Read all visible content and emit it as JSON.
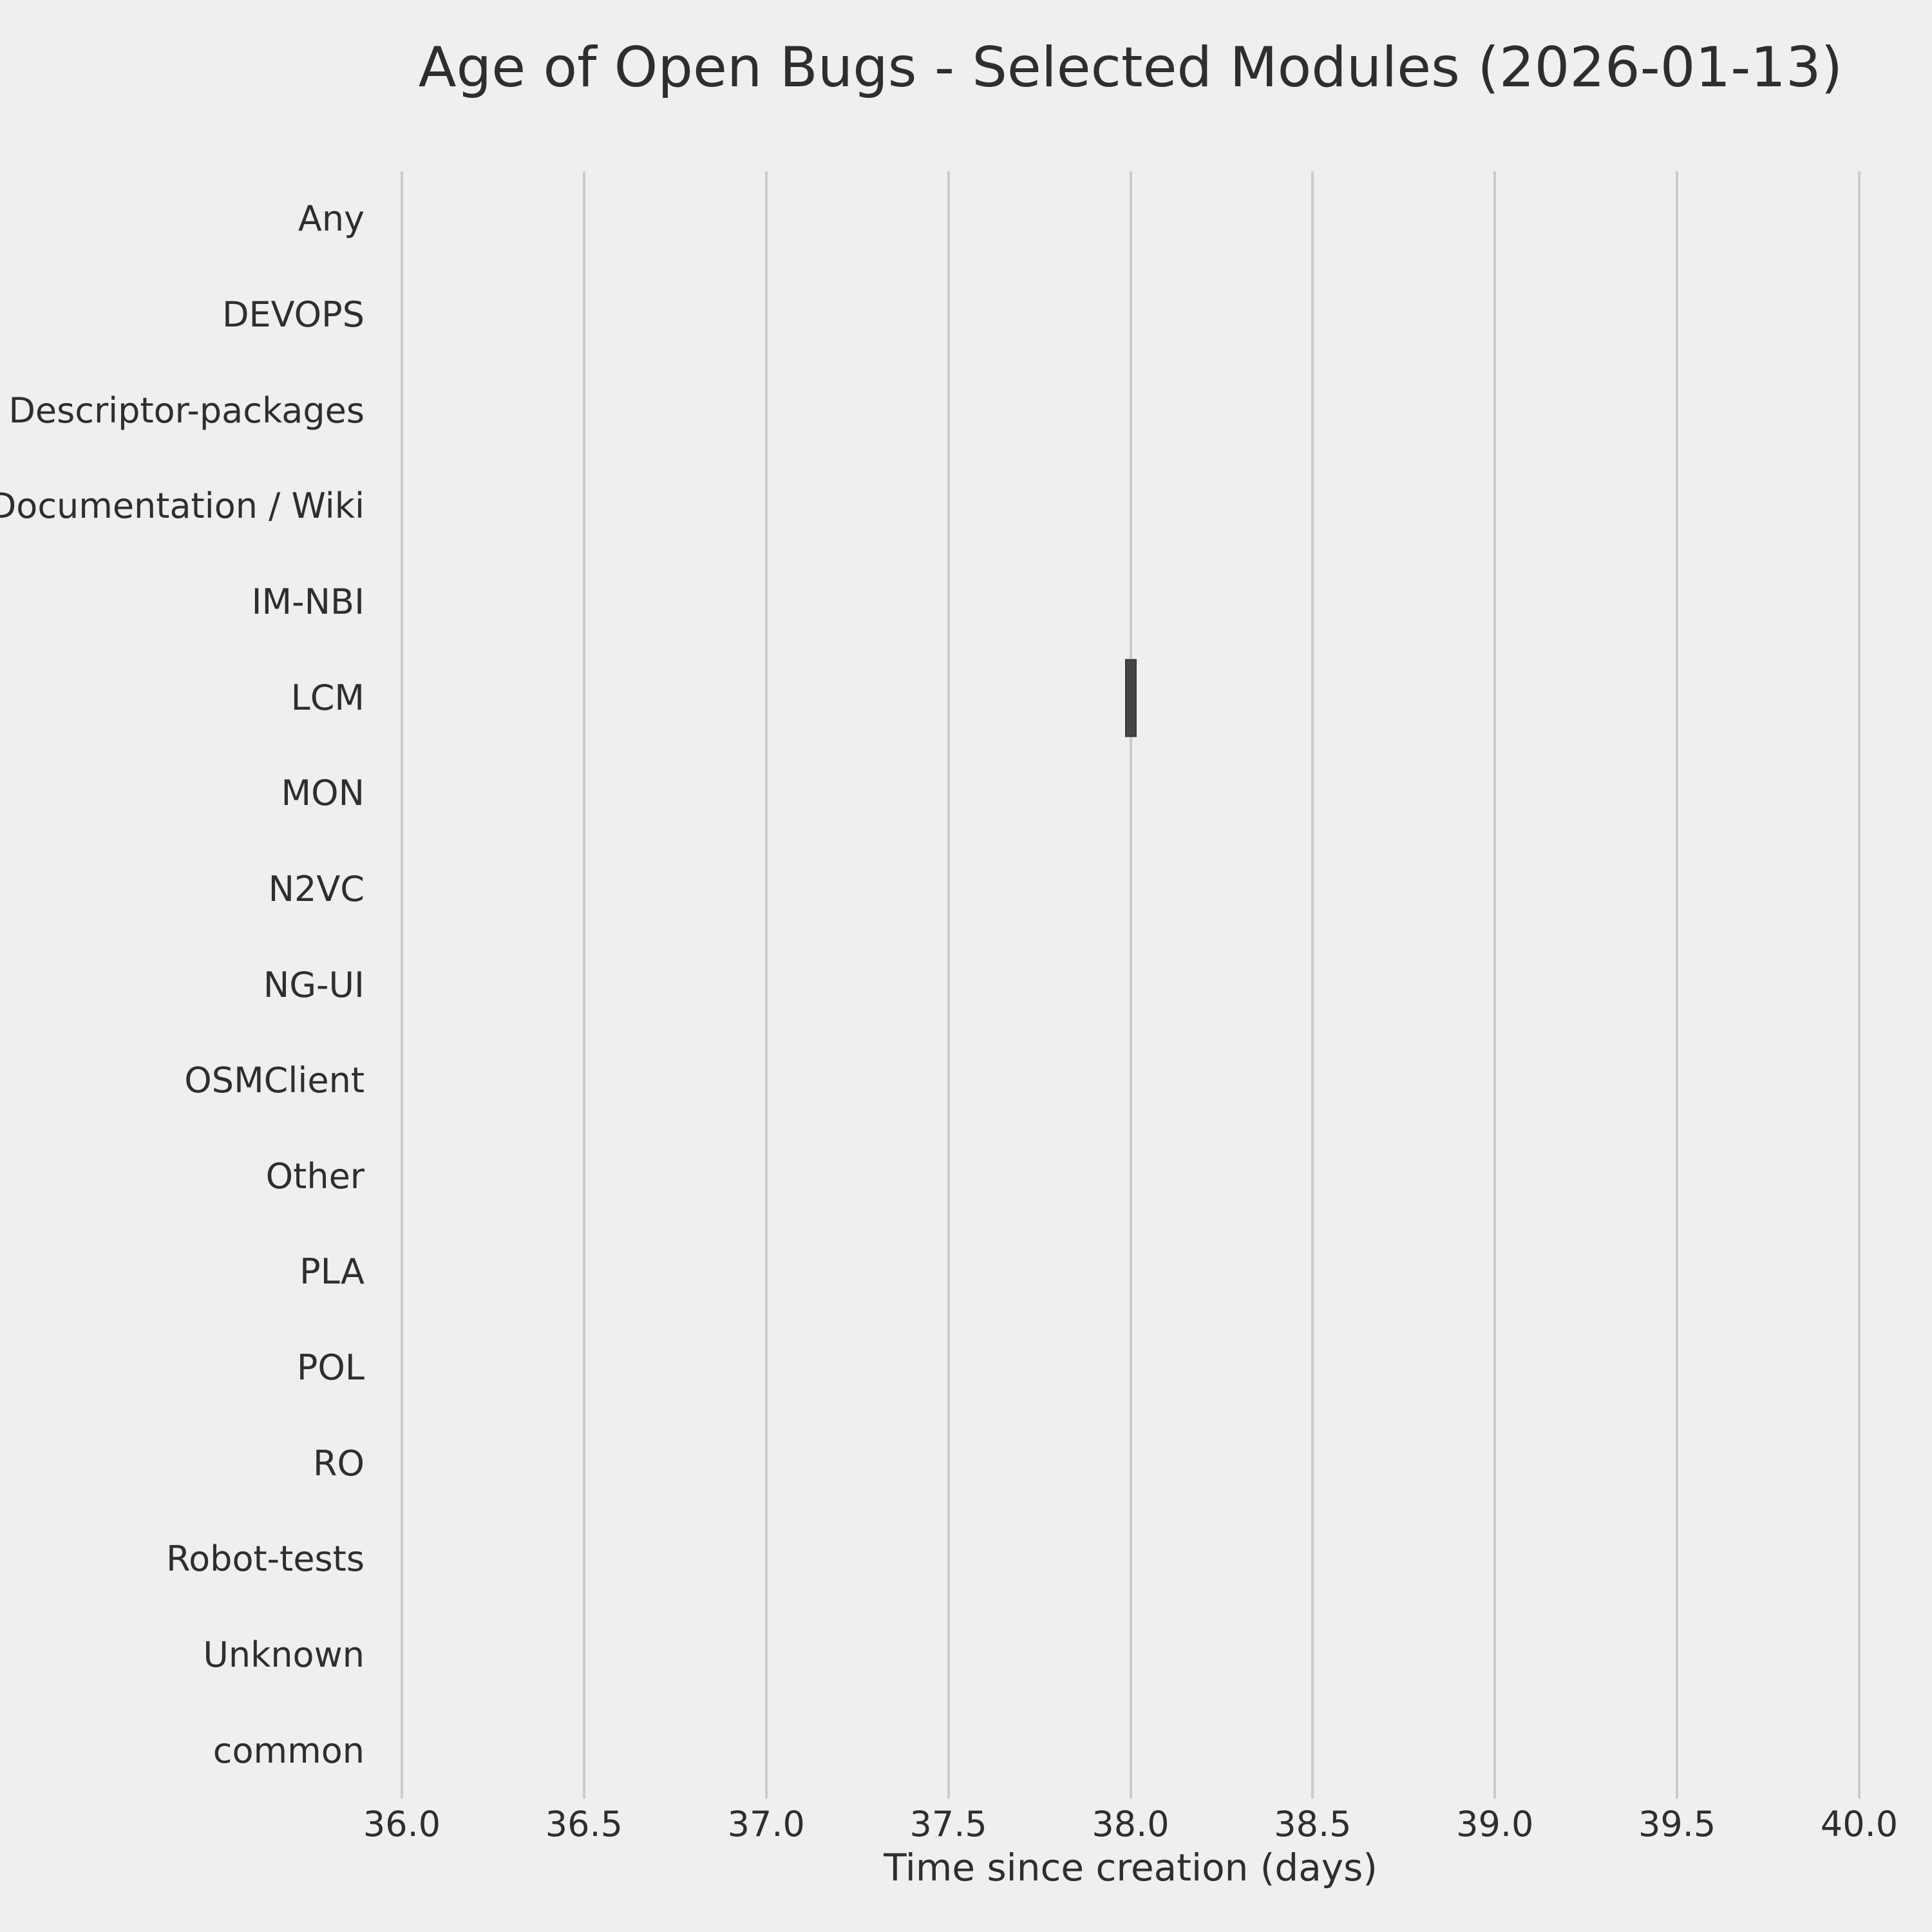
{
  "chart_data": {
    "type": "boxplot",
    "orientation": "horizontal",
    "title": "Age of Open Bugs - Selected Modules (2026-01-13)",
    "xlabel": "Time since creation (days)",
    "ylabel": "",
    "categories": [
      "Any",
      "DEVOPS",
      "Descriptor-packages",
      "Documentation / Wiki",
      "IM-NBI",
      "LCM",
      "MON",
      "N2VC",
      "NG-UI",
      "OSMClient",
      "Other",
      "PLA",
      "POL",
      "RO",
      "Robot-tests",
      "Unknown",
      "common"
    ],
    "x_ticks": [
      36.0,
      36.5,
      37.0,
      37.5,
      38.0,
      38.5,
      39.0,
      39.5,
      40.0
    ],
    "x_tick_labels": [
      "36.0",
      "36.5",
      "37.0",
      "37.5",
      "38.0",
      "38.5",
      "39.0",
      "39.5",
      "40.0"
    ],
    "xlim": [
      36.0,
      40.0
    ],
    "grid": {
      "vertical": true,
      "horizontal": false
    },
    "legend": "none",
    "boxes": [
      {
        "category": "LCM",
        "whisker_low": 38.0,
        "q1": 38.0,
        "median": 38.0,
        "q3": 38.0,
        "whisker_high": 38.0
      }
    ],
    "colors": {
      "background": "#efefef",
      "gridline": "#cbcbcb",
      "box": "#454545",
      "text": "#2e2e2e"
    }
  }
}
